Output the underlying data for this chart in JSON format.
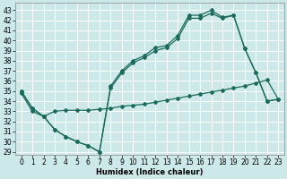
{
  "xlabel": "Humidex (Indice chaleur)",
  "background_color": "#cce8e8",
  "grid_color": "#ffffff",
  "line_color": "#1a6b5a",
  "xlim": [
    -0.5,
    23.5
  ],
  "ylim": [
    28.7,
    43.7
  ],
  "yticks": [
    29,
    30,
    31,
    32,
    33,
    34,
    35,
    36,
    37,
    38,
    39,
    40,
    41,
    42,
    43
  ],
  "xticks": [
    0,
    1,
    2,
    3,
    4,
    5,
    6,
    7,
    8,
    9,
    10,
    11,
    12,
    13,
    14,
    15,
    16,
    17,
    18,
    19,
    20,
    21,
    22,
    23
  ],
  "series1_x": [
    0,
    1,
    2,
    3,
    4,
    5,
    6,
    7,
    8,
    9,
    10,
    11,
    12,
    13,
    14,
    15,
    16,
    17,
    18,
    19,
    20,
    21,
    22,
    23
  ],
  "series1_y": [
    35.0,
    33.3,
    32.5,
    31.2,
    30.5,
    30.0,
    29.6,
    29.0,
    35.5,
    37.0,
    38.0,
    38.5,
    39.3,
    39.5,
    40.5,
    42.5,
    42.5,
    43.0,
    42.3,
    42.5,
    39.2,
    36.8,
    34.0,
    34.2
  ],
  "series2_x": [
    0,
    1,
    2,
    3,
    4,
    5,
    6,
    7,
    8,
    9,
    10,
    11,
    12,
    13,
    14,
    15,
    16,
    17,
    18,
    19,
    20,
    21,
    22,
    23
  ],
  "series2_y": [
    35.0,
    33.3,
    32.5,
    31.2,
    30.5,
    30.0,
    29.6,
    29.0,
    35.3,
    36.8,
    37.8,
    38.3,
    39.0,
    39.3,
    40.2,
    42.2,
    42.2,
    42.7,
    42.2,
    42.5,
    39.2,
    36.8,
    34.0,
    34.2
  ],
  "series3_x": [
    0,
    1,
    2,
    3,
    4,
    5,
    6,
    7,
    8,
    9,
    10,
    11,
    12,
    13,
    14,
    15,
    16,
    17,
    18,
    19,
    20,
    21,
    22,
    23
  ],
  "series3_y": [
    34.8,
    33.0,
    32.5,
    33.0,
    33.1,
    33.1,
    33.1,
    33.2,
    33.3,
    33.5,
    33.6,
    33.7,
    33.9,
    34.1,
    34.3,
    34.5,
    34.7,
    34.9,
    35.1,
    35.3,
    35.5,
    35.8,
    36.1,
    34.2
  ]
}
